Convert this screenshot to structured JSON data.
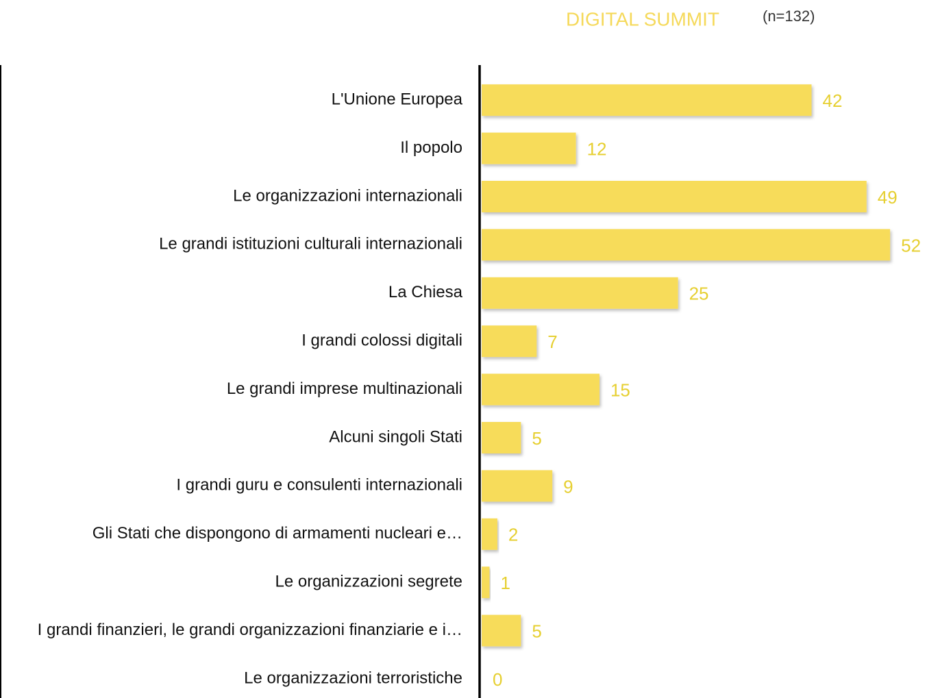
{
  "chart_data": {
    "type": "bar",
    "orientation": "horizontal",
    "title": "DIGITAL SUMMIT",
    "subtitle": "(n=132)",
    "categories": [
      "L'Unione Europea",
      "Il popolo",
      "Le organizzazioni internazionali",
      "Le grandi istituzioni culturali internazionali",
      "La Chiesa",
      "I grandi colossi digitali",
      "Le grandi imprese multinazionali",
      "Alcuni singoli Stati",
      "I grandi guru e consulenti internazionali",
      "Gli Stati che dispongono di armamenti nucleari e…",
      "Le organizzazioni segrete",
      "I grandi finanzieri, le grandi organizzazioni finanziarie e i…",
      "Le organizzazioni terroristiche"
    ],
    "values": [
      42,
      12,
      49,
      52,
      25,
      7,
      15,
      5,
      9,
      2,
      1,
      5,
      0
    ],
    "color": "#f7dc5a",
    "label_color": "#e6cf30",
    "xlim": [
      0,
      56
    ]
  }
}
